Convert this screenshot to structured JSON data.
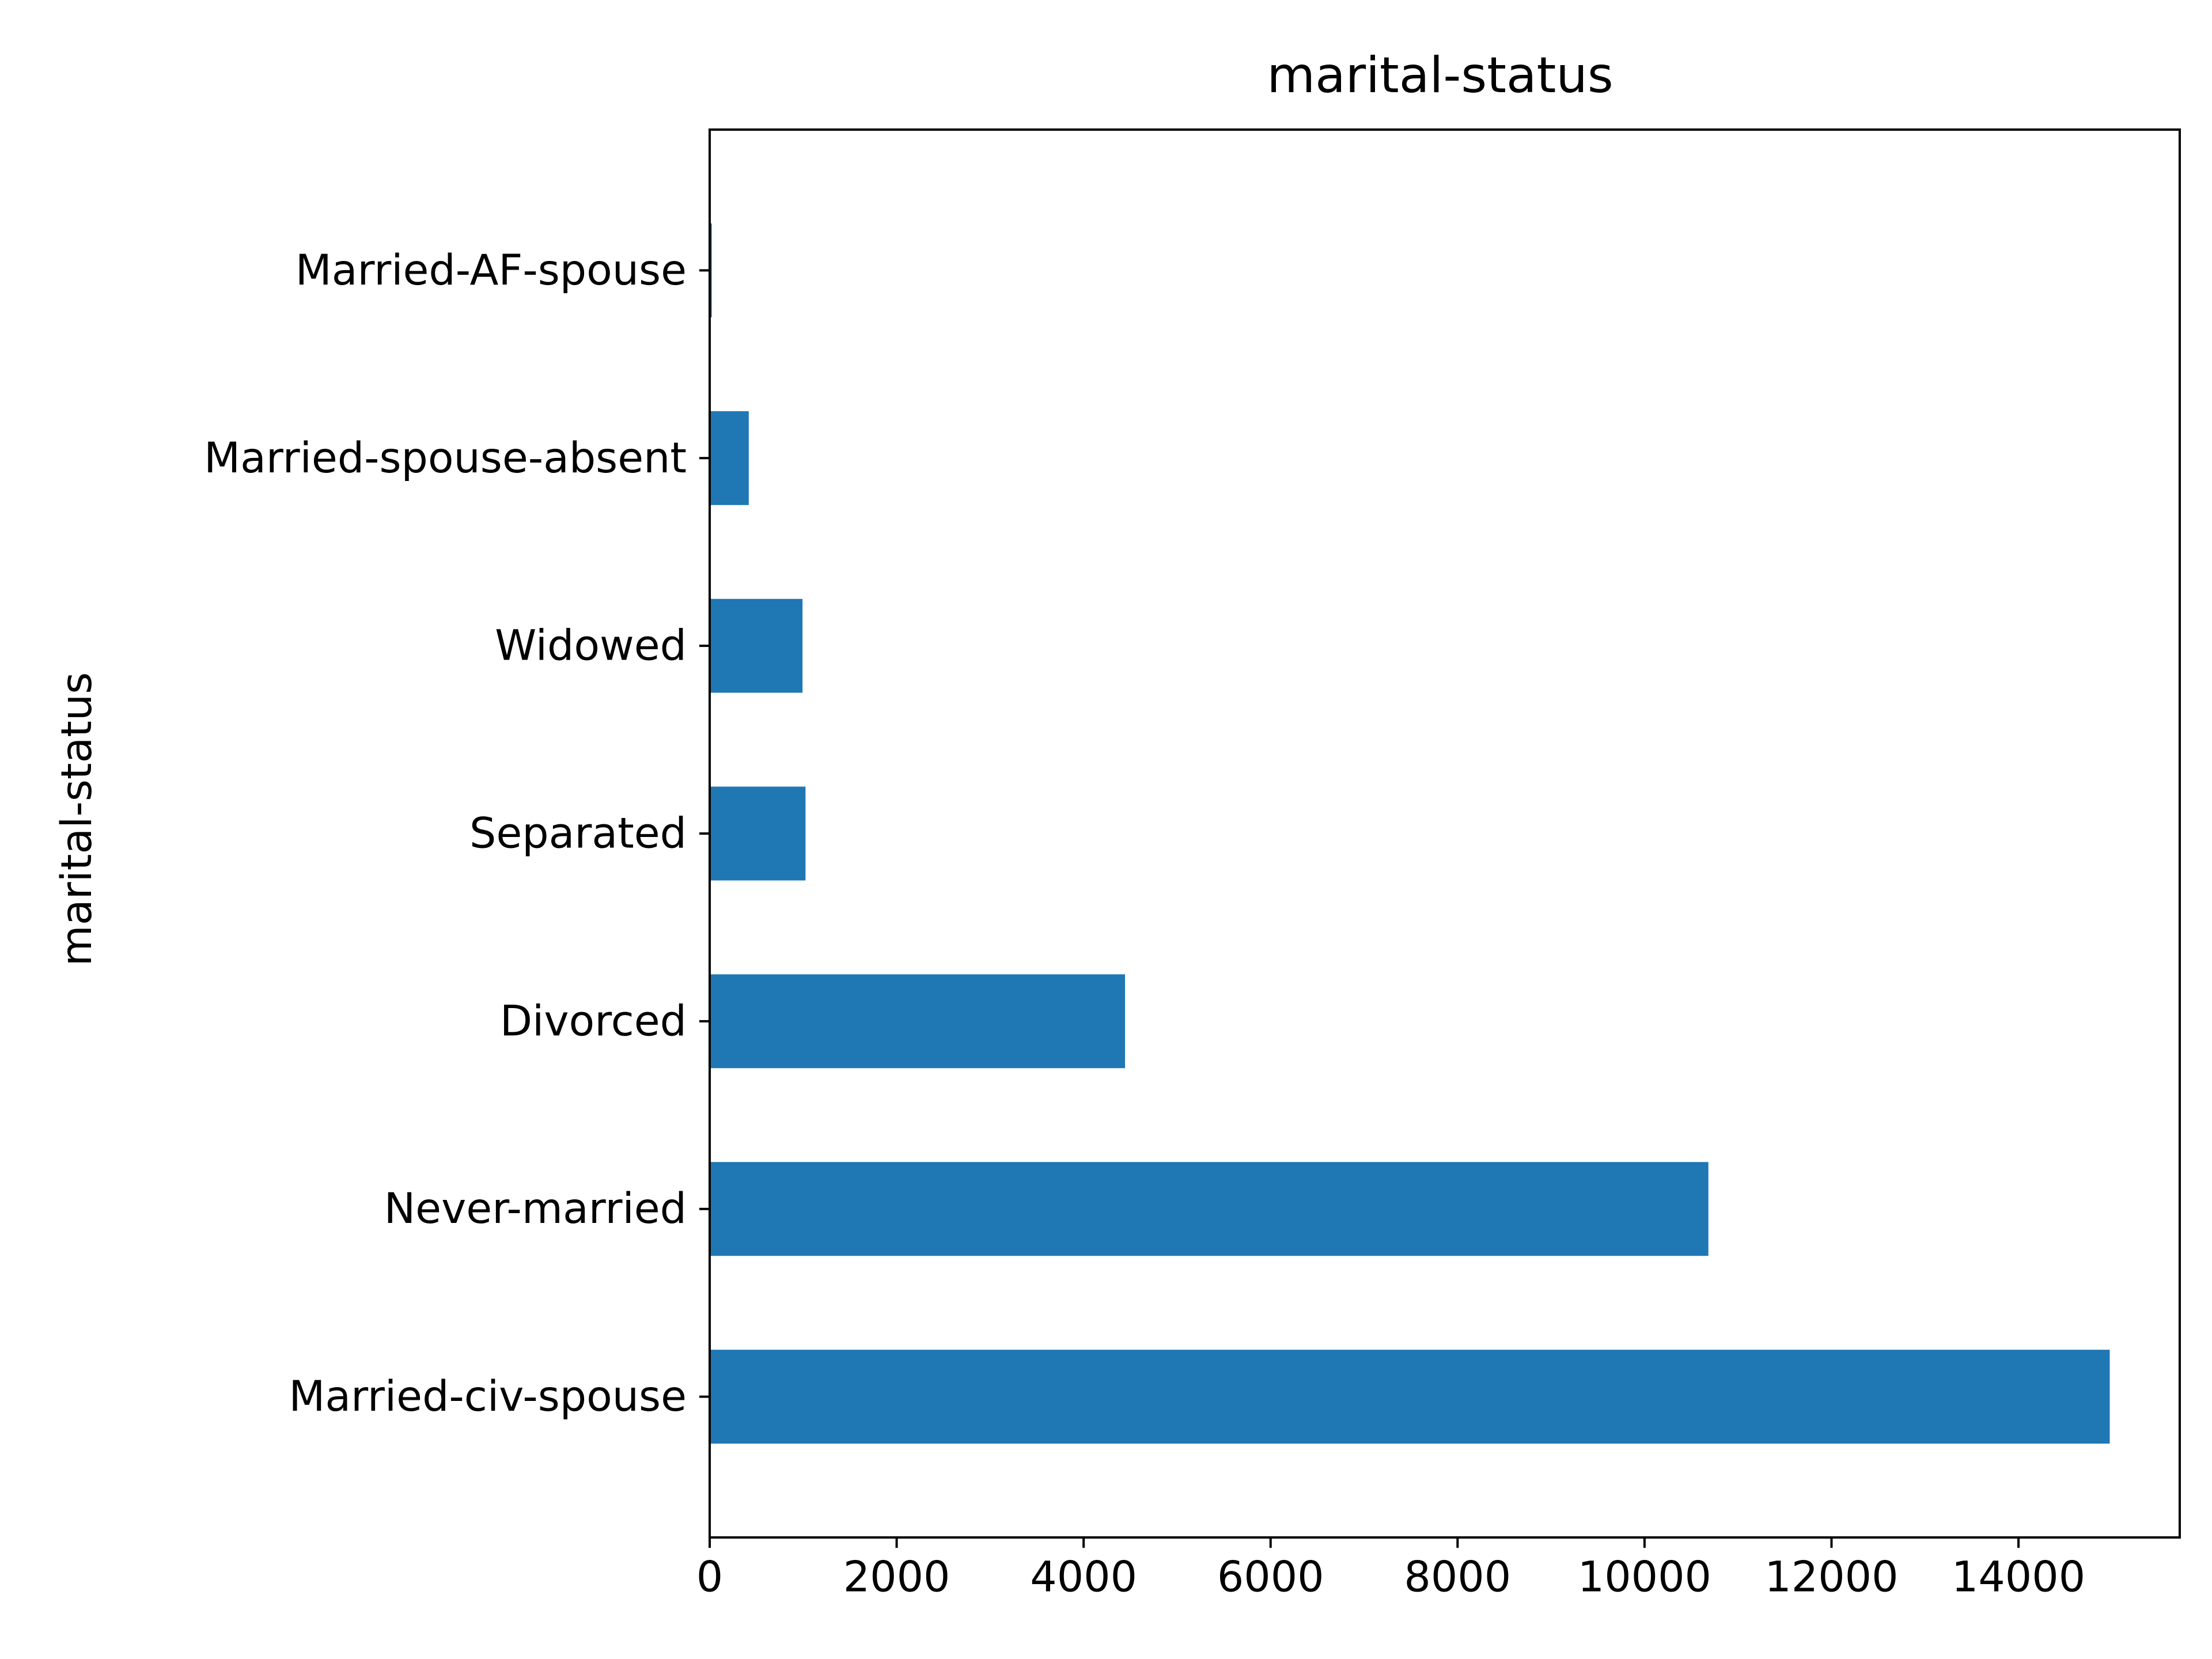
{
  "chart_data": {
    "type": "bar",
    "orientation": "horizontal",
    "title": "marital-status",
    "xlabel": "",
    "ylabel": "marital-status",
    "categories": [
      "Married-civ-spouse",
      "Never-married",
      "Divorced",
      "Separated",
      "Widowed",
      "Married-spouse-absent",
      "Married-AF-spouse"
    ],
    "values": [
      14976,
      10683,
      4443,
      1025,
      993,
      418,
      23
    ],
    "xlim": [
      0,
      15725
    ],
    "xticks": [
      0,
      2000,
      4000,
      6000,
      8000,
      10000,
      12000,
      14000
    ],
    "xtick_labels": [
      "0",
      "2000",
      "4000",
      "6000",
      "8000",
      "10000",
      "12000",
      "14000"
    ],
    "grid": false,
    "legend": "none",
    "colors": {
      "bar": "#1f77b4",
      "axis": "#000000",
      "background": "#ffffff"
    }
  }
}
